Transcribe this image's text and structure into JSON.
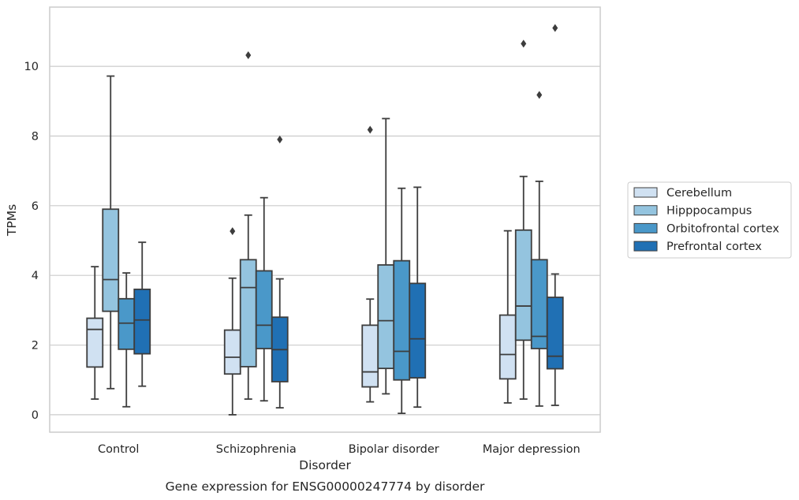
{
  "chart_data": {
    "type": "boxplot",
    "title": "Gene expression for ENSG00000247774 by disorder",
    "xlabel": "Disorder",
    "ylabel": "TPMs",
    "ylim": [
      -0.5,
      11.7
    ],
    "yticks": [
      0,
      2,
      4,
      6,
      8,
      10
    ],
    "grid": "horizontal",
    "legend_position": "right",
    "categories": [
      "Control",
      "Schizophrenia",
      "Bipolar disorder",
      "Major depression"
    ],
    "series": [
      {
        "name": "Cerebellum",
        "color": "#d0e1f2",
        "boxes": [
          {
            "whislo": 0.45,
            "q1": 1.37,
            "med": 2.45,
            "q3": 2.77,
            "whishi": 4.25,
            "fliers": []
          },
          {
            "whislo": 0.0,
            "q1": 1.17,
            "med": 1.65,
            "q3": 2.43,
            "whishi": 3.92,
            "fliers": [
              5.27
            ]
          },
          {
            "whislo": 0.37,
            "q1": 0.8,
            "med": 1.23,
            "q3": 2.57,
            "whishi": 3.32,
            "fliers": [
              8.18
            ]
          },
          {
            "whislo": 0.34,
            "q1": 1.03,
            "med": 1.73,
            "q3": 2.86,
            "whishi": 5.28,
            "fliers": []
          }
        ]
      },
      {
        "name": "Hipppocampus",
        "color": "#94c4df",
        "boxes": [
          {
            "whislo": 0.75,
            "q1": 2.97,
            "med": 3.88,
            "q3": 5.9,
            "whishi": 9.72,
            "fliers": []
          },
          {
            "whislo": 0.45,
            "q1": 1.38,
            "med": 3.65,
            "q3": 4.45,
            "whishi": 5.73,
            "fliers": [
              10.32
            ]
          },
          {
            "whislo": 0.6,
            "q1": 1.33,
            "med": 2.7,
            "q3": 4.3,
            "whishi": 8.5,
            "fliers": []
          },
          {
            "whislo": 0.45,
            "q1": 2.14,
            "med": 3.12,
            "q3": 5.3,
            "whishi": 6.84,
            "fliers": [
              10.65
            ]
          }
        ]
      },
      {
        "name": "Orbitofrontal cortex",
        "color": "#4a98c9",
        "boxes": [
          {
            "whislo": 0.23,
            "q1": 1.88,
            "med": 2.63,
            "q3": 3.33,
            "whishi": 4.07,
            "fliers": []
          },
          {
            "whislo": 0.4,
            "q1": 1.9,
            "med": 2.57,
            "q3": 4.13,
            "whishi": 6.23,
            "fliers": []
          },
          {
            "whislo": 0.04,
            "q1": 1.0,
            "med": 1.82,
            "q3": 4.42,
            "whishi": 6.5,
            "fliers": []
          },
          {
            "whislo": 0.25,
            "q1": 1.9,
            "med": 2.25,
            "q3": 4.45,
            "whishi": 6.7,
            "fliers": [
              9.18
            ]
          }
        ]
      },
      {
        "name": "Prefrontal cortex",
        "color": "#2070b4",
        "boxes": [
          {
            "whislo": 0.82,
            "q1": 1.75,
            "med": 2.72,
            "q3": 3.6,
            "whishi": 4.95,
            "fliers": []
          },
          {
            "whislo": 0.2,
            "q1": 0.95,
            "med": 1.87,
            "q3": 2.8,
            "whishi": 3.9,
            "fliers": [
              7.9
            ]
          },
          {
            "whislo": 0.22,
            "q1": 1.06,
            "med": 2.18,
            "q3": 3.77,
            "whishi": 6.53,
            "fliers": []
          },
          {
            "whislo": 0.27,
            "q1": 1.32,
            "med": 1.68,
            "q3": 3.37,
            "whishi": 4.04,
            "fliers": [
              11.1
            ]
          }
        ]
      }
    ]
  }
}
